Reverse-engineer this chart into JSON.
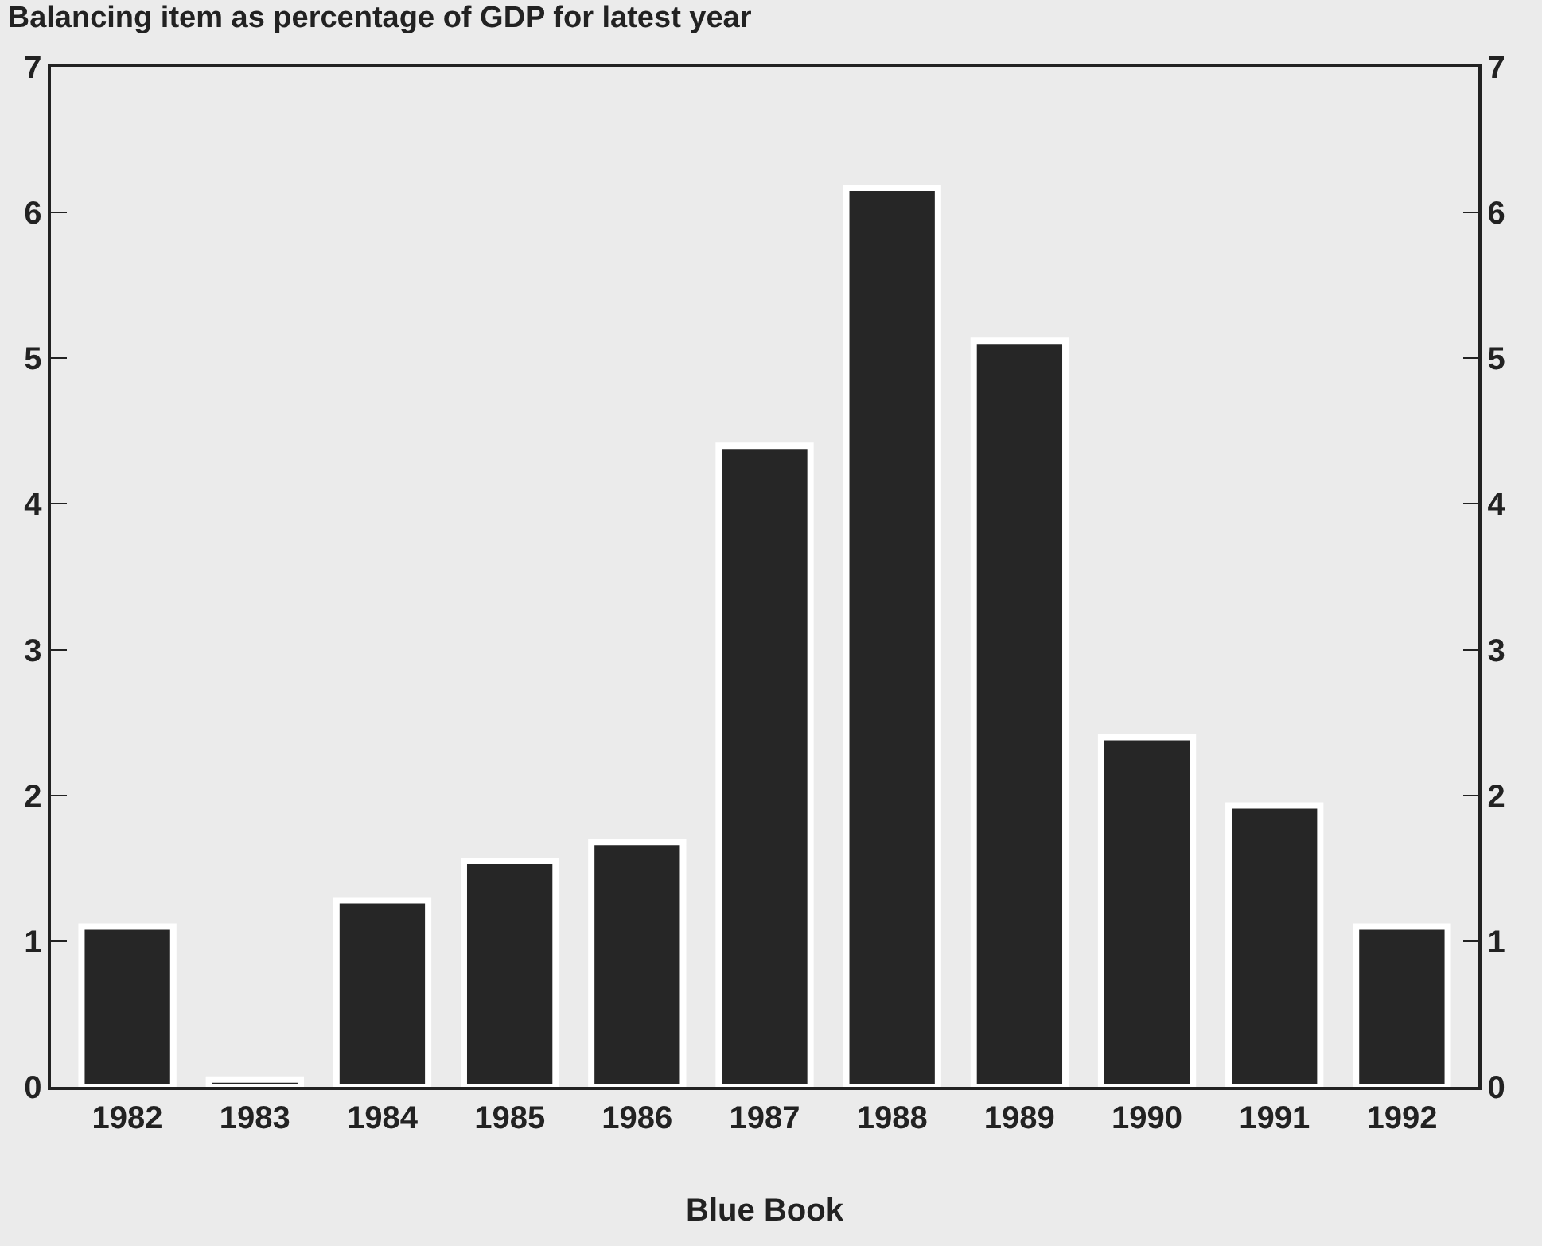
{
  "chart_data": {
    "type": "bar",
    "title": "Balancing item as percentage of GDP for latest year",
    "xlabel": "Blue Book",
    "categories": [
      "1982",
      "1983",
      "1984",
      "1985",
      "1986",
      "1987",
      "1988",
      "1989",
      "1990",
      "1991",
      "1992"
    ],
    "values": [
      1.1,
      0.05,
      1.28,
      1.55,
      1.68,
      4.4,
      6.17,
      5.12,
      2.4,
      1.93,
      1.1
    ],
    "color": "#262626",
    "ylim": [
      0,
      7
    ],
    "yticks": [
      0,
      1,
      2,
      3,
      4,
      5,
      6,
      7
    ],
    "y2lim": [
      0,
      7
    ],
    "y2ticks": [
      0,
      1,
      2,
      3,
      4,
      5,
      6,
      7
    ]
  }
}
